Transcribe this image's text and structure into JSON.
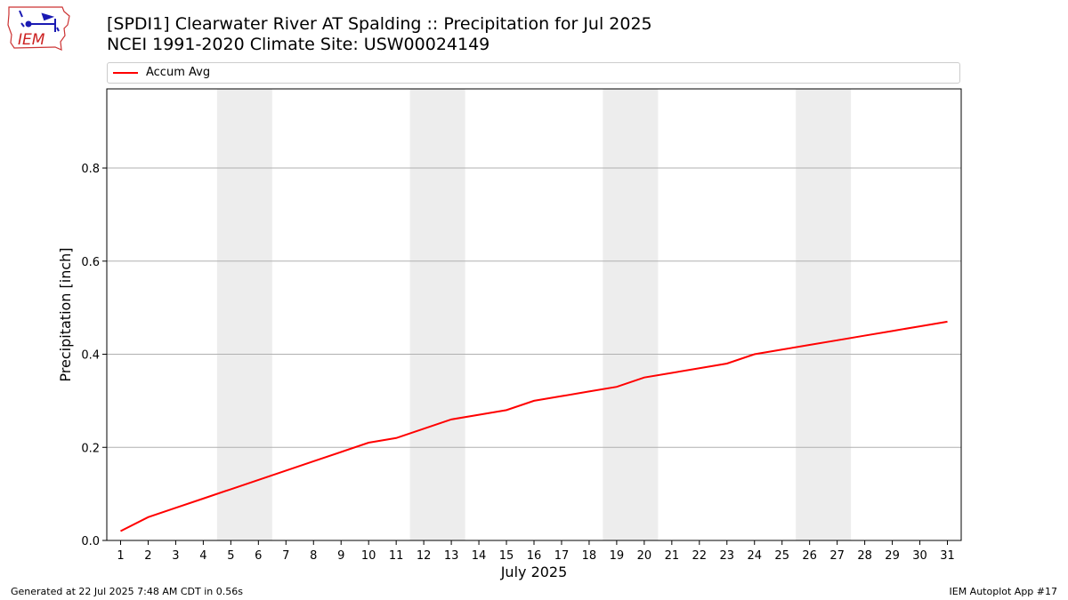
{
  "header": {
    "title_line1": "[SPDI1] Clearwater River  AT Spalding :: Precipitation for Jul 2025",
    "title_line2": "NCEI 1991-2020 Climate Site: USW00024149"
  },
  "logo": {
    "text": "IEM",
    "icon": "iowa-state-map-logo-icon"
  },
  "footer": {
    "left": "Generated at 22 Jul 2025 7:48 AM CDT in 0.56s",
    "right": "IEM Autoplot App #17"
  },
  "colors": {
    "line": "#ff0000",
    "weekend_band": "#ededed",
    "grid": "#b0b0b0",
    "logo": "#cc2222"
  },
  "chart_data": {
    "type": "line",
    "xlabel": "July 2025",
    "ylabel": "Precipitation [inch]",
    "x": [
      1,
      2,
      3,
      4,
      5,
      6,
      7,
      8,
      9,
      10,
      11,
      12,
      13,
      14,
      15,
      16,
      17,
      18,
      19,
      20,
      21,
      22,
      23,
      24,
      25,
      26,
      27,
      28,
      29,
      30,
      31
    ],
    "xlim": [
      0.5,
      31.5
    ],
    "ylim": [
      0,
      0.97
    ],
    "yticks": [
      0.0,
      0.2,
      0.4,
      0.6,
      0.8
    ],
    "ytick_labels": [
      "0.0",
      "0.2",
      "0.4",
      "0.6",
      "0.8"
    ],
    "grid": "horizontal",
    "legend_position": "top",
    "shaded_days": [
      [
        5,
        6
      ],
      [
        12,
        13
      ],
      [
        19,
        20
      ],
      [
        26,
        27
      ]
    ],
    "series": [
      {
        "name": "Accum Avg",
        "color": "#ff0000",
        "values": [
          0.02,
          0.05,
          0.07,
          0.09,
          0.11,
          0.13,
          0.15,
          0.17,
          0.19,
          0.21,
          0.22,
          0.24,
          0.26,
          0.27,
          0.28,
          0.3,
          0.31,
          0.32,
          0.33,
          0.35,
          0.36,
          0.37,
          0.38,
          0.4,
          0.41,
          0.42,
          0.43,
          0.44,
          0.45,
          0.46,
          0.47
        ]
      }
    ]
  }
}
